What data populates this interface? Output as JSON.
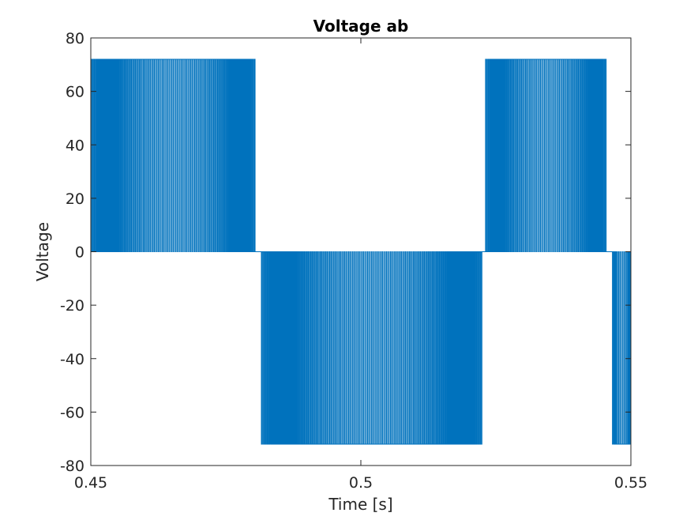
{
  "chart_data": {
    "type": "line",
    "title": "Voltage ab",
    "xlabel": "Time [s]",
    "ylabel": "Voltage",
    "xlim": [
      0.45,
      0.55
    ],
    "ylim": [
      -80,
      80
    ],
    "xticks": [
      0.45,
      0.5,
      0.55
    ],
    "xtick_labels": [
      "0.45",
      "0.5",
      "0.55"
    ],
    "yticks": [
      -80,
      -60,
      -40,
      -20,
      0,
      20,
      40,
      60,
      80
    ],
    "ytick_labels": [
      "-80",
      "-60",
      "-40",
      "-20",
      "0",
      "20",
      "40",
      "60",
      "80"
    ],
    "grid": false,
    "series": [
      {
        "color": "#0072BD",
        "waveform": "PWM line-to-line voltage switching between 0 and ±72",
        "amplitude": 72,
        "segments": [
          {
            "start": 0.45,
            "end": 0.4805,
            "level": 72
          },
          {
            "start": 0.4805,
            "end": 0.4815,
            "level": 0
          },
          {
            "start": 0.4815,
            "end": 0.5225,
            "level": -72
          },
          {
            "start": 0.5225,
            "end": 0.523,
            "level": 0
          },
          {
            "start": 0.523,
            "end": 0.5455,
            "level": 72
          },
          {
            "start": 0.5455,
            "end": 0.5465,
            "level": 0
          },
          {
            "start": 0.5465,
            "end": 0.55,
            "level": -72
          }
        ]
      }
    ]
  }
}
